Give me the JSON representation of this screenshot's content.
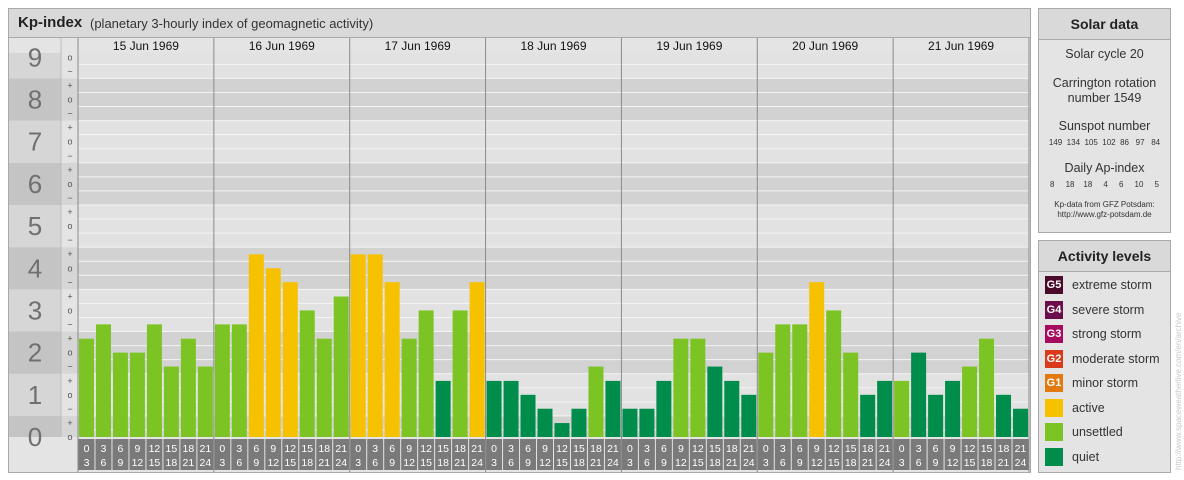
{
  "header": {
    "title": "Kp-index",
    "subtitle": "(planetary 3-hourly index of geomagnetic activity)"
  },
  "chart_data": {
    "type": "bar",
    "title": "Kp-index",
    "subtitle": "(planetary 3-hourly index of geomagnetic activity)",
    "ylim": [
      0,
      9
    ],
    "y_ticks": [
      "0",
      "1",
      "2",
      "3",
      "4",
      "5",
      "6",
      "7",
      "8",
      "9"
    ],
    "minor_ticks": [
      "+",
      "o",
      "−"
    ],
    "days": [
      "15 Jun 1969",
      "16 Jun 1969",
      "17 Jun 1969",
      "18 Jun 1969",
      "19 Jun 1969",
      "20 Jun 1969",
      "21 Jun 1969"
    ],
    "interval_labels": [
      [
        "0",
        "3"
      ],
      [
        "3",
        "6"
      ],
      [
        "6",
        "9"
      ],
      [
        "9",
        "12"
      ],
      [
        "12",
        "15"
      ],
      [
        "15",
        "18"
      ],
      [
        "18",
        "21"
      ],
      [
        "21",
        "24"
      ]
    ],
    "values": [
      [
        2.33,
        2.67,
        2.0,
        2.0,
        2.67,
        1.67,
        2.33,
        1.67
      ],
      [
        2.67,
        2.67,
        4.33,
        4.0,
        3.67,
        3.0,
        2.33,
        3.33
      ],
      [
        4.33,
        4.33,
        3.67,
        2.33,
        3.0,
        1.33,
        3.0,
        3.67
      ],
      [
        1.33,
        1.33,
        1.0,
        0.67,
        0.33,
        0.67,
        1.67,
        1.33
      ],
      [
        0.67,
        0.67,
        1.33,
        2.33,
        2.33,
        1.67,
        1.33,
        1.0
      ],
      [
        2.0,
        2.67,
        2.67,
        3.67,
        3.0,
        2.0,
        1.0,
        1.33
      ],
      [
        1.33,
        2.0,
        1.0,
        1.33,
        1.67,
        2.33,
        1.0,
        0.67
      ]
    ],
    "colors": [
      [
        "unsettled",
        "unsettled",
        "unsettled",
        "unsettled",
        "unsettled",
        "unsettled",
        "unsettled",
        "unsettled"
      ],
      [
        "unsettled",
        "unsettled",
        "active",
        "active",
        "active",
        "unsettled",
        "unsettled",
        "unsettled"
      ],
      [
        "active",
        "active",
        "active",
        "unsettled",
        "unsettled",
        "quiet",
        "unsettled",
        "active"
      ],
      [
        "quiet",
        "quiet",
        "quiet",
        "quiet",
        "quiet",
        "quiet",
        "unsettled",
        "quiet"
      ],
      [
        "quiet",
        "quiet",
        "quiet",
        "unsettled",
        "unsettled",
        "quiet",
        "quiet",
        "quiet"
      ],
      [
        "unsettled",
        "unsettled",
        "unsettled",
        "active",
        "unsettled",
        "unsettled",
        "quiet",
        "quiet"
      ],
      [
        "unsettled",
        "quiet",
        "quiet",
        "quiet",
        "unsettled",
        "unsettled",
        "quiet",
        "quiet"
      ]
    ],
    "grid": true
  },
  "solar": {
    "heading": "Solar data",
    "cycle": "Solar cycle 20",
    "carrington_line1": "Carrington rotation",
    "carrington_line2": "number 1549",
    "sunspot_label": "Sunspot number",
    "sunspot_values": "149  134  105  102  86   97   84",
    "ap_label": "Daily Ap-index",
    "ap_values": "8     18    18     4     6     10     5",
    "source_line1": "Kp-data from GFZ Potsdam:",
    "source_line2": "http://www.gfz-potsdam.de"
  },
  "activity": {
    "heading": "Activity levels",
    "levels": [
      {
        "code": "G5",
        "label": "extreme storm",
        "color": "#4a0a2a"
      },
      {
        "code": "G4",
        "label": "severe storm",
        "color": "#6a0d4a"
      },
      {
        "code": "G3",
        "label": "strong storm",
        "color": "#a80a5e"
      },
      {
        "code": "G2",
        "label": "moderate storm",
        "color": "#d93a1a"
      },
      {
        "code": "G1",
        "label": "minor storm",
        "color": "#e27a10"
      },
      {
        "code": "",
        "label": "active",
        "color": "#f6c200"
      },
      {
        "code": "",
        "label": "unsettled",
        "color": "#7cc424"
      },
      {
        "code": "",
        "label": "quiet",
        "color": "#008c4a"
      }
    ]
  },
  "watermark": "http://www.spaceweatherlive.com/en/archive"
}
